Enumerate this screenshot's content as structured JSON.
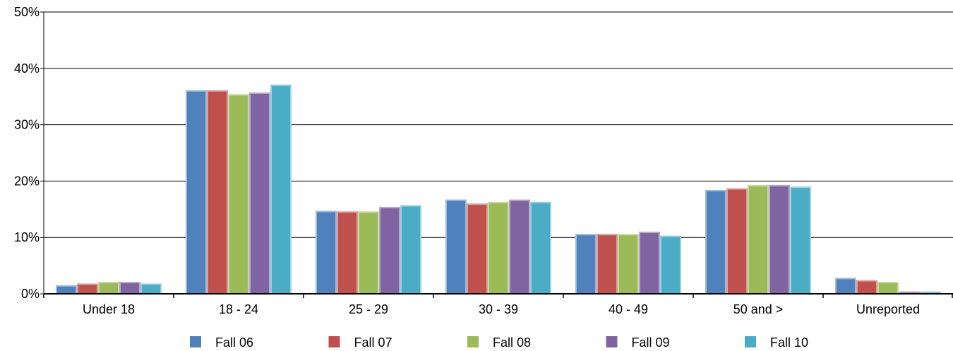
{
  "chart_data": {
    "type": "bar",
    "title": "",
    "xlabel": "",
    "ylabel": "",
    "ylim": [
      0,
      50
    ],
    "yticks": [
      0,
      10,
      20,
      30,
      40,
      50
    ],
    "ytick_labels": [
      "0%",
      "10%",
      "20%",
      "30%",
      "40%",
      "50%"
    ],
    "grid": true,
    "legend_position": "bottom",
    "categories": [
      "Under 18",
      "18 - 24",
      "25 - 29",
      "30 - 39",
      "40 - 49",
      "50 and >",
      "Unreported"
    ],
    "series": [
      {
        "name": "Fall 06",
        "color": "#4f81bd",
        "values": [
          1.4,
          36.0,
          14.6,
          16.6,
          10.5,
          18.3,
          2.7
        ]
      },
      {
        "name": "Fall 07",
        "color": "#c0504d",
        "values": [
          1.7,
          36.0,
          14.5,
          15.9,
          10.5,
          18.6,
          2.3
        ]
      },
      {
        "name": "Fall 08",
        "color": "#9bbb59",
        "values": [
          2.0,
          35.3,
          14.5,
          16.2,
          10.5,
          19.2,
          2.0
        ]
      },
      {
        "name": "Fall 09",
        "color": "#8064a2",
        "values": [
          2.0,
          35.6,
          15.3,
          16.6,
          10.9,
          19.2,
          0.3
        ]
      },
      {
        "name": "Fall 10",
        "color": "#4bacc6",
        "values": [
          1.7,
          37.0,
          15.6,
          16.2,
          10.2,
          18.9,
          0.3
        ]
      }
    ]
  }
}
